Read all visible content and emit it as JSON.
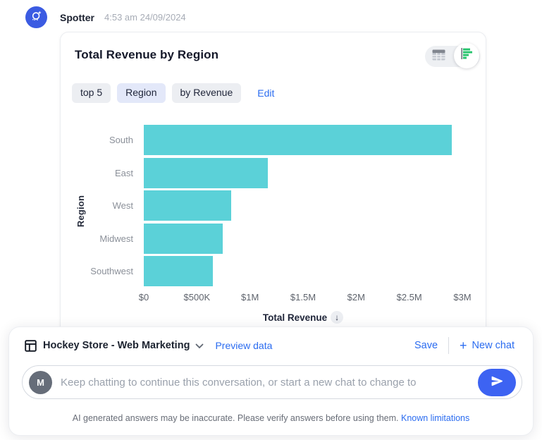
{
  "header": {
    "app_name": "Spotter",
    "timestamp": "4:53 am 24/09/2024"
  },
  "card": {
    "title": "Total Revenue by Region",
    "chips": [
      {
        "label": "top 5",
        "variant": "gray"
      },
      {
        "label": "Region",
        "variant": "blue"
      },
      {
        "label": "by Revenue",
        "variant": "gray"
      }
    ],
    "edit_label": "Edit",
    "view_toggle": {
      "options": [
        "table-view",
        "chart-view"
      ],
      "selected": "chart-view"
    }
  },
  "chart_data": {
    "type": "bar",
    "orientation": "horizontal",
    "title": "Total Revenue by Region",
    "categories": [
      "South",
      "East",
      "West",
      "Midwest",
      "Southwest"
    ],
    "values": [
      2900000,
      1170000,
      820000,
      745000,
      650000
    ],
    "xlabel": "Total Revenue",
    "ylabel": "Region",
    "xlim": [
      0,
      3000000
    ],
    "xticks": [
      0,
      500000,
      1000000,
      1500000,
      2000000,
      2500000,
      3000000
    ],
    "xtick_labels": [
      "$0",
      "$500K",
      "$1M",
      "$1.5M",
      "$2M",
      "$2.5M",
      "$3M"
    ],
    "bar_color": "#5BD1D8",
    "grid": false,
    "legend": false,
    "sort": "descending",
    "sort_indicator": "↓"
  },
  "dock": {
    "datasource_label": "Hockey Store - Web Marketing",
    "preview_label": "Preview data",
    "save_label": "Save",
    "new_chat_label": "New chat",
    "input": {
      "avatar_initial": "M",
      "value": "",
      "placeholder": "Keep chatting to continue this conversation, or start a new chat to change to"
    },
    "disclaimer_text": "AI generated answers may be inaccurate. Please verify answers before using them.",
    "known_limitations_label": "Known limitations"
  },
  "colors": {
    "accent_blue": "#2b6cf0",
    "send_button": "#3d63f2",
    "bot_avatar": "#3b5be2",
    "bar_teal": "#5BD1D8",
    "toggle_green": "#27c46d"
  }
}
